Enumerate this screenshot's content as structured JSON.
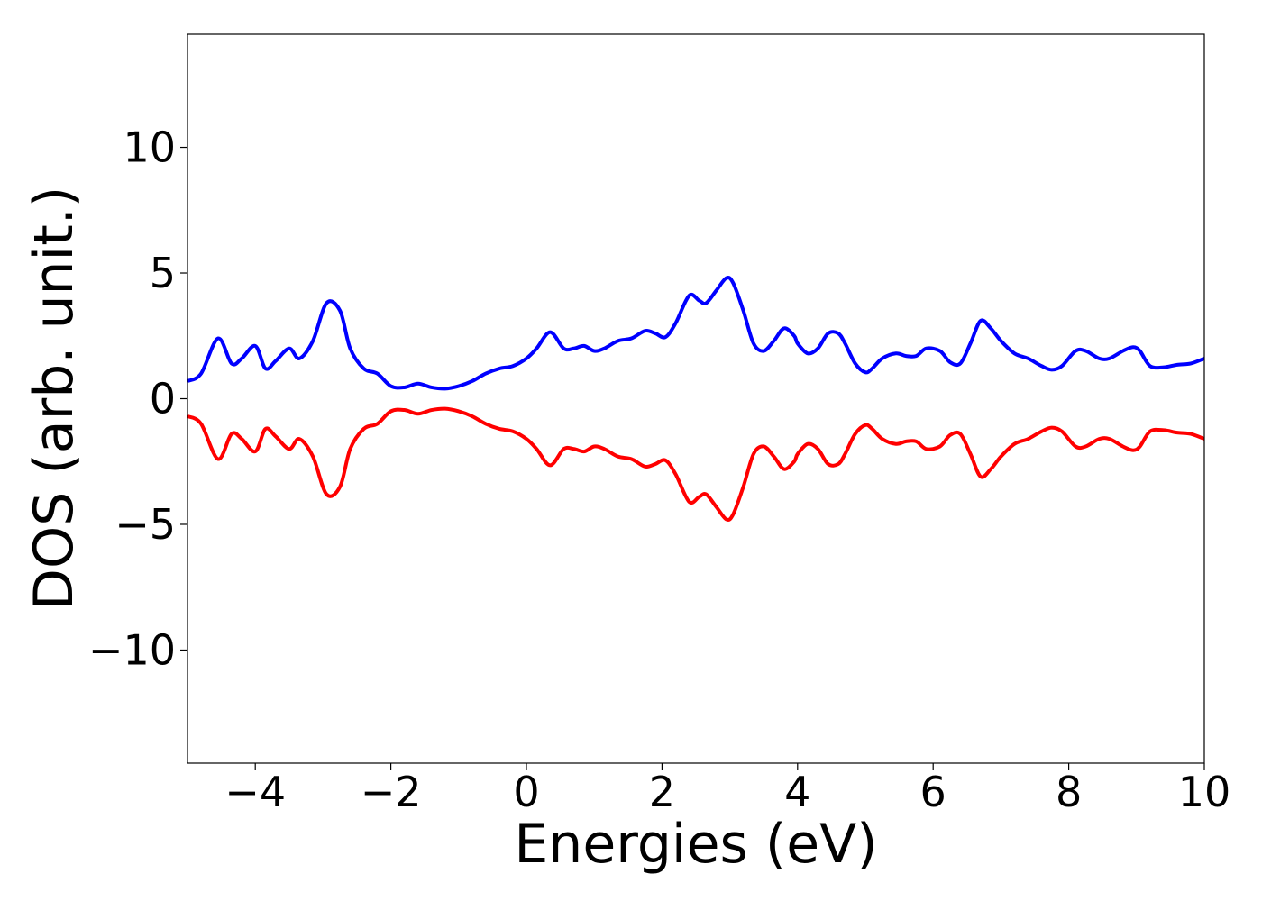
{
  "chart_data": {
    "type": "line",
    "xlabel": "Energies (eV)",
    "ylabel": "DOS (arb. unit.)",
    "xlim": [
      -5,
      10
    ],
    "ylim": [
      -14.5,
      14.5
    ],
    "grid": false,
    "x_ticks": [
      {
        "value": -4,
        "label": "−4"
      },
      {
        "value": -2,
        "label": "−2"
      },
      {
        "value": 0,
        "label": "0"
      },
      {
        "value": 2,
        "label": "2"
      },
      {
        "value": 4,
        "label": "4"
      },
      {
        "value": 6,
        "label": "6"
      },
      {
        "value": 8,
        "label": "8"
      },
      {
        "value": 10,
        "label": "10"
      }
    ],
    "y_ticks": [
      {
        "value": 10,
        "label": "10"
      },
      {
        "value": 5,
        "label": "5"
      },
      {
        "value": 0,
        "label": "0"
      },
      {
        "value": -5,
        "label": "−5"
      },
      {
        "value": -10,
        "label": "−10"
      }
    ],
    "series": [
      {
        "color": "#0000ff",
        "x": [
          -5.0,
          -4.8,
          -4.55,
          -4.35,
          -4.2,
          -4.0,
          -3.85,
          -3.7,
          -3.5,
          -3.35,
          -3.15,
          -2.95,
          -2.75,
          -2.6,
          -2.4,
          -2.2,
          -2.0,
          -1.8,
          -1.6,
          -1.4,
          -1.2,
          -1.0,
          -0.8,
          -0.6,
          -0.4,
          -0.2,
          0.0,
          0.15,
          0.35,
          0.55,
          0.7,
          0.85,
          1.0,
          1.15,
          1.35,
          1.55,
          1.75,
          1.9,
          2.05,
          2.2,
          2.4,
          2.55,
          2.65,
          2.8,
          2.95,
          3.05,
          3.2,
          3.35,
          3.5,
          3.65,
          3.8,
          3.95,
          4.0,
          4.15,
          4.3,
          4.45,
          4.6,
          4.7,
          4.85,
          5.0,
          5.1,
          5.25,
          5.45,
          5.6,
          5.75,
          5.9,
          6.1,
          6.25,
          6.4,
          6.55,
          6.7,
          6.85,
          7.0,
          7.2,
          7.4,
          7.6,
          7.75,
          7.9,
          8.1,
          8.25,
          8.45,
          8.6,
          8.8,
          8.95,
          9.05,
          9.2,
          9.4,
          9.6,
          9.8,
          10.0
        ],
        "values": [
          0.7,
          1.0,
          2.4,
          1.4,
          1.6,
          2.1,
          1.2,
          1.5,
          2.0,
          1.6,
          2.3,
          3.8,
          3.5,
          2.0,
          1.2,
          1.0,
          0.5,
          0.45,
          0.6,
          0.45,
          0.4,
          0.5,
          0.7,
          1.0,
          1.2,
          1.3,
          1.6,
          2.0,
          2.65,
          2.0,
          2.0,
          2.1,
          1.9,
          2.0,
          2.3,
          2.4,
          2.7,
          2.6,
          2.45,
          3.0,
          4.1,
          3.9,
          3.8,
          4.3,
          4.8,
          4.6,
          3.5,
          2.2,
          1.9,
          2.3,
          2.8,
          2.5,
          2.2,
          1.8,
          2.0,
          2.6,
          2.6,
          2.2,
          1.4,
          1.05,
          1.2,
          1.6,
          1.8,
          1.7,
          1.7,
          2.0,
          1.9,
          1.45,
          1.4,
          2.2,
          3.1,
          2.8,
          2.3,
          1.8,
          1.6,
          1.3,
          1.15,
          1.3,
          1.9,
          1.9,
          1.6,
          1.6,
          1.9,
          2.05,
          1.9,
          1.3,
          1.25,
          1.35,
          1.4,
          1.6
        ]
      },
      {
        "color": "#ff0000",
        "x": [
          -5.0,
          -4.8,
          -4.55,
          -4.35,
          -4.2,
          -4.0,
          -3.85,
          -3.7,
          -3.5,
          -3.35,
          -3.15,
          -2.95,
          -2.75,
          -2.6,
          -2.4,
          -2.2,
          -2.0,
          -1.8,
          -1.6,
          -1.4,
          -1.2,
          -1.0,
          -0.8,
          -0.6,
          -0.4,
          -0.2,
          0.0,
          0.15,
          0.35,
          0.55,
          0.7,
          0.85,
          1.0,
          1.15,
          1.35,
          1.55,
          1.75,
          1.9,
          2.05,
          2.2,
          2.4,
          2.55,
          2.65,
          2.8,
          2.95,
          3.05,
          3.2,
          3.35,
          3.5,
          3.65,
          3.8,
          3.95,
          4.0,
          4.15,
          4.3,
          4.45,
          4.6,
          4.7,
          4.85,
          5.0,
          5.1,
          5.25,
          5.45,
          5.6,
          5.75,
          5.9,
          6.1,
          6.25,
          6.4,
          6.55,
          6.7,
          6.85,
          7.0,
          7.2,
          7.4,
          7.6,
          7.75,
          7.9,
          8.1,
          8.25,
          8.45,
          8.6,
          8.8,
          8.95,
          9.05,
          9.2,
          9.4,
          9.6,
          9.8,
          10.0
        ],
        "values": [
          -0.7,
          -1.0,
          -2.4,
          -1.4,
          -1.6,
          -2.1,
          -1.2,
          -1.5,
          -2.0,
          -1.6,
          -2.3,
          -3.8,
          -3.5,
          -2.0,
          -1.2,
          -1.0,
          -0.5,
          -0.45,
          -0.6,
          -0.45,
          -0.4,
          -0.5,
          -0.7,
          -1.0,
          -1.2,
          -1.3,
          -1.6,
          -2.0,
          -2.65,
          -2.0,
          -2.0,
          -2.1,
          -1.9,
          -2.0,
          -2.3,
          -2.4,
          -2.7,
          -2.6,
          -2.45,
          -3.0,
          -4.1,
          -3.9,
          -3.8,
          -4.3,
          -4.8,
          -4.6,
          -3.5,
          -2.2,
          -1.9,
          -2.3,
          -2.8,
          -2.5,
          -2.2,
          -1.8,
          -2.0,
          -2.6,
          -2.6,
          -2.2,
          -1.4,
          -1.05,
          -1.2,
          -1.6,
          -1.8,
          -1.7,
          -1.7,
          -2.0,
          -1.9,
          -1.45,
          -1.4,
          -2.2,
          -3.1,
          -2.8,
          -2.3,
          -1.8,
          -1.6,
          -1.3,
          -1.15,
          -1.3,
          -1.9,
          -1.9,
          -1.6,
          -1.6,
          -1.9,
          -2.05,
          -1.9,
          -1.3,
          -1.25,
          -1.35,
          -1.4,
          -1.6
        ]
      }
    ]
  }
}
